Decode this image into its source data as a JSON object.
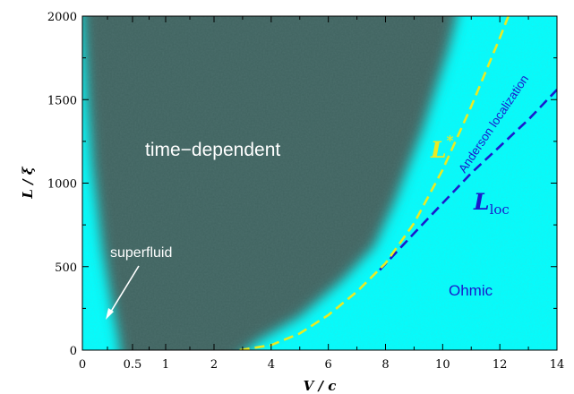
{
  "chart_data": {
    "type": "heatmap",
    "title": "",
    "xlabel": "V / c",
    "ylabel": "L / ξ",
    "x_ticks": [
      "0",
      "0.5",
      "1",
      "2",
      "4",
      "6",
      "8",
      "10",
      "12",
      "14"
    ],
    "x_tick_values": [
      0,
      0.5,
      1,
      2,
      4,
      6,
      8,
      10,
      12,
      14
    ],
    "x_scale": "piecewise-linear (expanded below V/c = 2)",
    "y_ticks": [
      "0",
      "500",
      "1000",
      "1500",
      "2000"
    ],
    "y_tick_values": [
      0,
      500,
      1000,
      1500,
      2000
    ],
    "xlim": [
      0,
      14
    ],
    "ylim": [
      0,
      2000
    ],
    "grid": false,
    "colors": {
      "time_dependent": "#3f6461",
      "ohmic": "#00ffff",
      "l_star_curve": "#eaea22",
      "l_loc_curve": "#1a1acc",
      "region_text": "#ffffff"
    },
    "regions": [
      {
        "label": "time−dependent",
        "color": "#3f6461"
      },
      {
        "label": "superfluid",
        "color": "#00ffff"
      },
      {
        "label": "Ohmic",
        "color": "#00ffff"
      }
    ],
    "boundary_left": [
      {
        "x": 0.0,
        "y": 2000
      },
      {
        "x": 0.05,
        "y": 1500
      },
      {
        "x": 0.1,
        "y": 1100
      },
      {
        "x": 0.2,
        "y": 600
      },
      {
        "x": 0.3,
        "y": 250
      },
      {
        "x": 0.35,
        "y": 100
      },
      {
        "x": 0.4,
        "y": 0
      }
    ],
    "boundary_right": [
      {
        "x": 2.4,
        "y": 0
      },
      {
        "x": 3.5,
        "y": 50
      },
      {
        "x": 5.0,
        "y": 200
      },
      {
        "x": 6.5,
        "y": 420
      },
      {
        "x": 7.6,
        "y": 620
      },
      {
        "x": 8.3,
        "y": 880
      },
      {
        "x": 9.3,
        "y": 1320
      },
      {
        "x": 10.2,
        "y": 1800
      },
      {
        "x": 10.5,
        "y": 2000
      }
    ],
    "series": [
      {
        "name": "L*",
        "style": "dashed",
        "color": "#eaea22",
        "points": [
          {
            "x": 2.9,
            "y": 0
          },
          {
            "x": 4.0,
            "y": 30
          },
          {
            "x": 5.0,
            "y": 100
          },
          {
            "x": 6.0,
            "y": 210
          },
          {
            "x": 7.0,
            "y": 350
          },
          {
            "x": 8.0,
            "y": 520
          },
          {
            "x": 9.0,
            "y": 760
          },
          {
            "x": 10.0,
            "y": 1080
          },
          {
            "x": 11.0,
            "y": 1460
          },
          {
            "x": 12.0,
            "y": 1870
          },
          {
            "x": 12.3,
            "y": 2000
          }
        ]
      },
      {
        "name": "Lloc",
        "style": "dashed",
        "color": "#1a1acc",
        "points": [
          {
            "x": 7.8,
            "y": 480
          },
          {
            "x": 9.0,
            "y": 700
          },
          {
            "x": 10.0,
            "y": 880
          },
          {
            "x": 11.0,
            "y": 1060
          },
          {
            "x": 12.0,
            "y": 1220
          },
          {
            "x": 13.0,
            "y": 1380
          },
          {
            "x": 14.0,
            "y": 1560
          }
        ]
      }
    ],
    "annotations": [
      {
        "text": "time−dependent",
        "x": 4.0,
        "y": 1180
      },
      {
        "text": "superfluid",
        "x": 1.2,
        "y": 560,
        "arrow_to": {
          "x": 0.3,
          "y": 180
        }
      },
      {
        "text": "Ohmic",
        "x": 11.3,
        "y": 350
      },
      {
        "text": "Anderson localization",
        "x": 11.5,
        "y": 1270,
        "rotated": true
      }
    ],
    "curve_labels": {
      "l_star_main": "L",
      "l_star_sup": "*",
      "l_loc_main": "L",
      "l_loc_sub": "loc"
    }
  }
}
